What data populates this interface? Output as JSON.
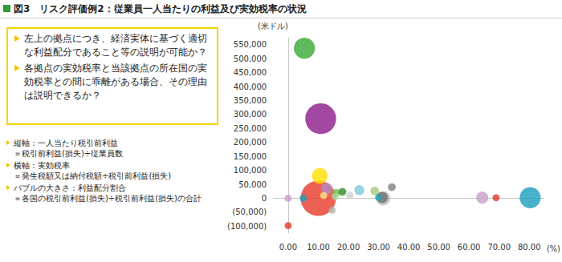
{
  "chart_data": {
    "type": "scatter",
    "title": "図3　リスク評価例2：従業員一人当たりの利益及び実効税率の状況",
    "x_label": "(%)",
    "y_label": "(米ドル)",
    "annotations": {
      "questions": [
        "左上の拠点につき、経済実体に基づく適切な利益配分であること等の説明が可能か？",
        "各拠点の実効税率と当該拠点の所在国の実効税率との間に乖離がある場合、その理由は説明できるか？"
      ],
      "notes": [
        {
          "heading": "縦軸：一人当たり税引前利益",
          "detail": "＝税引前利益(損失)÷従業員数"
        },
        {
          "heading": "横軸：実効税率",
          "detail": "＝発生税額又は納付税額÷税引前利益(損失)"
        },
        {
          "heading": "バブルの大きさ：利益配分割合",
          "detail": "＝各国の税引前利益(損失)÷税引前利益(損失)の合計"
        }
      ]
    },
    "xlim": [
      -5,
      85
    ],
    "xticks": [
      {
        "value": 0,
        "label": "0.00"
      },
      {
        "value": 10,
        "label": "10.00"
      },
      {
        "value": 20,
        "label": "20.00"
      },
      {
        "value": 30,
        "label": "30.00"
      },
      {
        "value": 40,
        "label": "40.00"
      },
      {
        "value": 50,
        "label": "50.00"
      },
      {
        "value": 60,
        "label": "60.00"
      },
      {
        "value": 70,
        "label": "70.00"
      },
      {
        "value": 80,
        "label": "80.00"
      }
    ],
    "ylim": [
      -125000,
      575000
    ],
    "yticks": [
      {
        "value": -100000,
        "label": "(100,000)"
      },
      {
        "value": -50000,
        "label": "(50,000)"
      },
      0,
      {
        "value": 50000,
        "label": "50,000"
      },
      {
        "value": 100000,
        "label": "100,000"
      },
      {
        "value": 150000,
        "label": "150,000"
      },
      {
        "value": 200000,
        "label": "200,000"
      },
      {
        "value": 250000,
        "label": "250,000"
      },
      {
        "value": 300000,
        "label": "300,000"
      },
      {
        "value": 350000,
        "label": "350,000"
      },
      {
        "value": 400000,
        "label": "400,000"
      },
      {
        "value": 450000,
        "label": "450,000"
      },
      {
        "value": 500000,
        "label": "500,000"
      },
      {
        "value": 550000,
        "label": "550,000"
      }
    ],
    "grid": false,
    "x": [
      10.0,
      10.8,
      5.4,
      80.3,
      10.5,
      31.5,
      64.4,
      31.2,
      12.8,
      23.6,
      28.7,
      0.0,
      0.0,
      5.0,
      11.8,
      16.0,
      18.0,
      15.6,
      14.6,
      20.5,
      30.0,
      34.4,
      69.0
    ],
    "values": [
      0,
      285000,
      537000,
      2000,
      80000,
      0,
      2000,
      3000,
      35000,
      29000,
      26000,
      0,
      -98000,
      0,
      10000,
      20000,
      23000,
      6000,
      -43000,
      11000,
      3000,
      40000,
      2000
    ],
    "sizes": [
      25,
      19,
      9,
      9,
      5,
      4,
      3,
      2.5,
      2.5,
      2,
      1.5,
      1,
      1,
      1,
      1,
      1.2,
      1.2,
      1,
      1,
      1,
      1,
      1.2,
      1
    ],
    "colors": [
      "#e8392b",
      "#8b1a8b",
      "#3aa935",
      "#1a9fbf",
      "#ffe000",
      "#b5b5b5",
      "#c8a0c8",
      "#707070",
      "#b58cc4",
      "#7fc8d8",
      "#a6c97a",
      "#c89bc8",
      "#e8392b",
      "#1aa0b8",
      "#f5e98a",
      "#6cbf4a",
      "#2e8b2e",
      "#a8d8a0",
      "#b0b0b0",
      "#d0d0d0",
      "#26a6b8",
      "#808080",
      "#e03a2a"
    ]
  }
}
